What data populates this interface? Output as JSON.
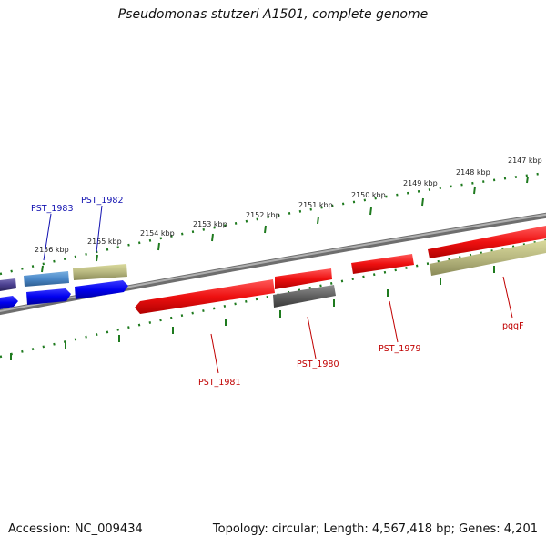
{
  "title": "Pseudomonas stutzeri A1501, complete genome",
  "accession": "Accession: NC_009434",
  "summary": "Topology: circular; Length: 4,567,418 bp; Genes: 4,201",
  "colors": {
    "backbone": "#8a8a8a",
    "ticks": "#1e7a1e",
    "label_blue": "#1010b0",
    "label_red": "#c00000"
  },
  "ticks": [
    "2156 kbp",
    "2155 kbp",
    "2154 kbp",
    "2153 kbp",
    "2152 kbp",
    "2151 kbp",
    "2150 kbp",
    "2149 kbp",
    "2148 kbp",
    "2147 kbp"
  ],
  "genes": [
    {
      "id": "PST_1983",
      "color": "#4a88c8",
      "strand": "+"
    },
    {
      "id": "PST_1982",
      "color": "#b8b880",
      "strand": "+"
    },
    {
      "id": "PST_1981",
      "color": "#ee1010",
      "strand": "-"
    },
    {
      "id": "PST_1980",
      "color": "#ee1010",
      "strand": "+"
    },
    {
      "id": "PST_1980_b",
      "color": "#606060",
      "strand": "-"
    },
    {
      "id": "PST_1979",
      "color": "#ee1010",
      "strand": "+"
    },
    {
      "id": "pqqF",
      "color": "#b8b880",
      "strand": "-"
    }
  ],
  "labels": {
    "PST_1983": "PST_1983",
    "PST_1982": "PST_1982",
    "PST_1981": "PST_1981",
    "PST_1980": "PST_1980",
    "PST_1979": "PST_1979",
    "pqqF": "pqqF"
  }
}
